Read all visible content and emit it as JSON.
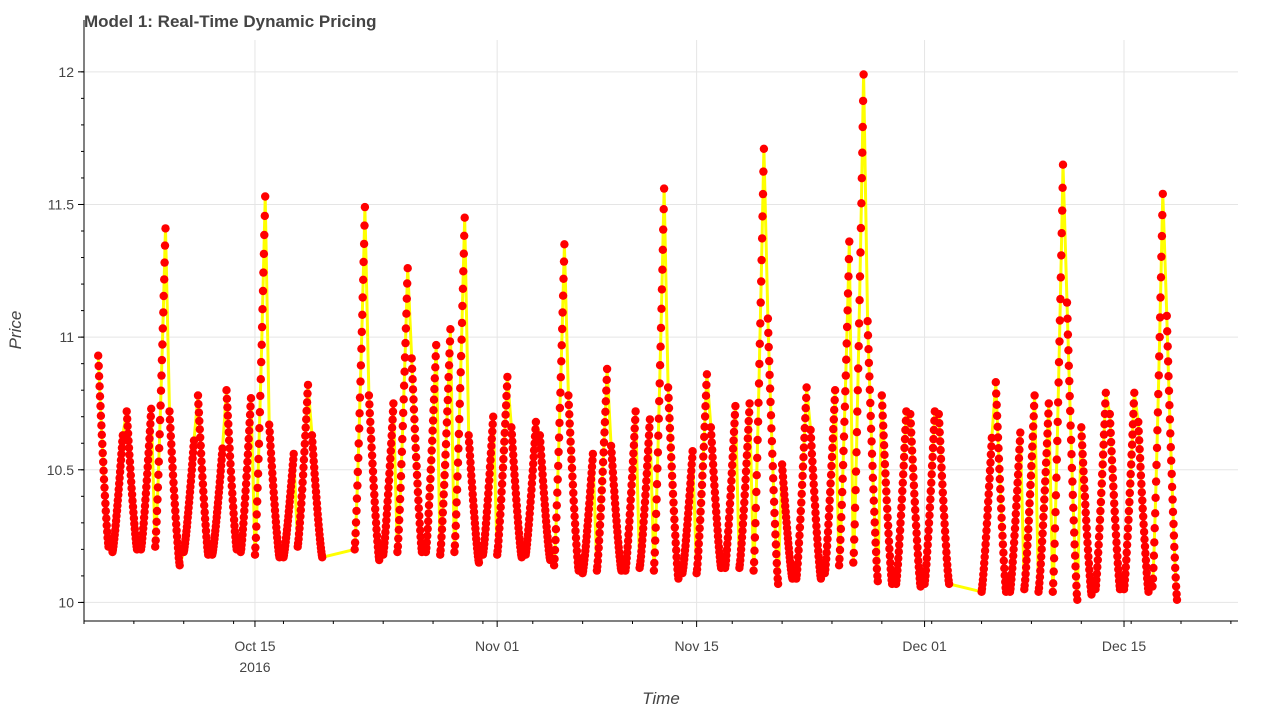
{
  "chart_data": {
    "type": "line",
    "title": "Model 1: Real-Time Dynamic Pricing",
    "xlabel": "Time",
    "ylabel": "Price",
    "x_unit": "date",
    "x_range": [
      "2016-10-03",
      "2016-12-23"
    ],
    "ylim": [
      9.93,
      12.12
    ],
    "y_ticks": [
      10,
      10.5,
      11,
      11.5,
      12
    ],
    "y_tick_labels": [
      "10",
      "10.5",
      "11",
      "11.5",
      "12"
    ],
    "x_ticks": [
      {
        "date": "2016-10-15",
        "label": "Oct 15",
        "sublabel": "2016"
      },
      {
        "date": "2016-11-01",
        "label": "Nov 01",
        "sublabel": ""
      },
      {
        "date": "2016-11-15",
        "label": "Nov 15",
        "sublabel": ""
      },
      {
        "date": "2016-12-01",
        "label": "Dec 01",
        "sublabel": ""
      },
      {
        "date": "2016-12-15",
        "label": "Dec 15",
        "sublabel": ""
      }
    ],
    "grid": true,
    "series": [
      {
        "line_color": "#ffff00",
        "marker_color": "#ff0000",
        "days": [
          {
            "date": "2016-10-04",
            "low": 10.21,
            "high": 10.93,
            "shape": "down"
          },
          {
            "date": "2016-10-05",
            "low": 10.19,
            "high": 10.63,
            "shape": "up"
          },
          {
            "date": "2016-10-06",
            "low": 10.2,
            "high": 10.72,
            "shape": "down"
          },
          {
            "date": "2016-10-07",
            "low": 10.2,
            "high": 10.73,
            "shape": "up"
          },
          {
            "date": "2016-10-08",
            "low": 10.21,
            "high": 11.41,
            "shape": "up"
          },
          {
            "date": "2016-10-09",
            "low": 10.14,
            "high": 10.72,
            "shape": "down"
          },
          {
            "date": "2016-10-10",
            "low": 10.19,
            "high": 10.61,
            "shape": "up"
          },
          {
            "date": "2016-10-11",
            "low": 10.18,
            "high": 10.78,
            "shape": "down"
          },
          {
            "date": "2016-10-12",
            "low": 10.18,
            "high": 10.58,
            "shape": "up"
          },
          {
            "date": "2016-10-13",
            "low": 10.2,
            "high": 10.8,
            "shape": "down"
          },
          {
            "date": "2016-10-14",
            "low": 10.19,
            "high": 10.77,
            "shape": "up"
          },
          {
            "date": "2016-10-15",
            "low": 10.18,
            "high": 11.53,
            "shape": "up"
          },
          {
            "date": "2016-10-16",
            "low": 10.17,
            "high": 10.67,
            "shape": "down"
          },
          {
            "date": "2016-10-17",
            "low": 10.17,
            "high": 10.56,
            "shape": "up"
          },
          {
            "date": "2016-10-18",
            "low": 10.21,
            "high": 10.82,
            "shape": "up"
          },
          {
            "date": "2016-10-19",
            "low": 10.17,
            "high": 10.63,
            "shape": "down"
          },
          {
            "date": "2016-10-22",
            "low": 10.2,
            "high": 11.49,
            "shape": "up"
          },
          {
            "date": "2016-10-23",
            "low": 10.16,
            "high": 10.78,
            "shape": "down"
          },
          {
            "date": "2016-10-24",
            "low": 10.18,
            "high": 10.75,
            "shape": "up"
          },
          {
            "date": "2016-10-25",
            "low": 10.19,
            "high": 11.26,
            "shape": "up"
          },
          {
            "date": "2016-10-26",
            "low": 10.19,
            "high": 10.92,
            "shape": "down"
          },
          {
            "date": "2016-10-27",
            "low": 10.19,
            "high": 10.97,
            "shape": "up"
          },
          {
            "date": "2016-10-28",
            "low": 10.18,
            "high": 11.03,
            "shape": "up"
          },
          {
            "date": "2016-10-29",
            "low": 10.19,
            "high": 11.45,
            "shape": "up"
          },
          {
            "date": "2016-10-30",
            "low": 10.15,
            "high": 10.63,
            "shape": "down"
          },
          {
            "date": "2016-10-31",
            "low": 10.18,
            "high": 10.7,
            "shape": "up"
          },
          {
            "date": "2016-11-01",
            "low": 10.18,
            "high": 10.85,
            "shape": "up"
          },
          {
            "date": "2016-11-02",
            "low": 10.17,
            "high": 10.66,
            "shape": "down"
          },
          {
            "date": "2016-11-03",
            "low": 10.18,
            "high": 10.68,
            "shape": "up"
          },
          {
            "date": "2016-11-04",
            "low": 10.16,
            "high": 10.63,
            "shape": "down"
          },
          {
            "date": "2016-11-05",
            "low": 10.14,
            "high": 11.35,
            "shape": "up"
          },
          {
            "date": "2016-11-06",
            "low": 10.12,
            "high": 10.78,
            "shape": "down"
          },
          {
            "date": "2016-11-07",
            "low": 10.11,
            "high": 10.56,
            "shape": "up"
          },
          {
            "date": "2016-11-08",
            "low": 10.12,
            "high": 10.88,
            "shape": "up"
          },
          {
            "date": "2016-11-09",
            "low": 10.12,
            "high": 10.59,
            "shape": "down"
          },
          {
            "date": "2016-11-10",
            "low": 10.12,
            "high": 10.72,
            "shape": "up"
          },
          {
            "date": "2016-11-11",
            "low": 10.13,
            "high": 10.69,
            "shape": "up"
          },
          {
            "date": "2016-11-12",
            "low": 10.12,
            "high": 11.56,
            "shape": "up"
          },
          {
            "date": "2016-11-13",
            "low": 10.09,
            "high": 10.81,
            "shape": "down"
          },
          {
            "date": "2016-11-14",
            "low": 10.11,
            "high": 10.57,
            "shape": "up"
          },
          {
            "date": "2016-11-15",
            "low": 10.11,
            "high": 10.86,
            "shape": "up"
          },
          {
            "date": "2016-11-16",
            "low": 10.13,
            "high": 10.66,
            "shape": "down"
          },
          {
            "date": "2016-11-17",
            "low": 10.13,
            "high": 10.74,
            "shape": "up"
          },
          {
            "date": "2016-11-18",
            "low": 10.13,
            "high": 10.75,
            "shape": "up"
          },
          {
            "date": "2016-11-19",
            "low": 10.12,
            "high": 11.71,
            "shape": "up"
          },
          {
            "date": "2016-11-20",
            "low": 10.07,
            "high": 11.07,
            "shape": "down"
          },
          {
            "date": "2016-11-21",
            "low": 10.09,
            "high": 10.52,
            "shape": "down"
          },
          {
            "date": "2016-11-22",
            "low": 10.09,
            "high": 10.81,
            "shape": "up"
          },
          {
            "date": "2016-11-23",
            "low": 10.09,
            "high": 10.65,
            "shape": "down"
          },
          {
            "date": "2016-11-24",
            "low": 10.11,
            "high": 10.8,
            "shape": "up"
          },
          {
            "date": "2016-11-25",
            "low": 10.14,
            "high": 11.36,
            "shape": "up"
          },
          {
            "date": "2016-11-26",
            "low": 10.15,
            "high": 11.99,
            "shape": "up"
          },
          {
            "date": "2016-11-27",
            "low": 10.08,
            "high": 11.06,
            "shape": "down"
          },
          {
            "date": "2016-11-28",
            "low": 10.07,
            "high": 10.78,
            "shape": "down"
          },
          {
            "date": "2016-11-29",
            "low": 10.07,
            "high": 10.72,
            "shape": "up"
          },
          {
            "date": "2016-11-30",
            "low": 10.06,
            "high": 10.71,
            "shape": "down"
          },
          {
            "date": "2016-12-01",
            "low": 10.07,
            "high": 10.72,
            "shape": "up"
          },
          {
            "date": "2016-12-02",
            "low": 10.07,
            "high": 10.71,
            "shape": "down"
          },
          {
            "date": "2016-12-05",
            "low": 10.04,
            "high": 10.62,
            "shape": "up"
          },
          {
            "date": "2016-12-06",
            "low": 10.04,
            "high": 10.83,
            "shape": "down"
          },
          {
            "date": "2016-12-07",
            "low": 10.04,
            "high": 10.64,
            "shape": "up"
          },
          {
            "date": "2016-12-08",
            "low": 10.05,
            "high": 10.78,
            "shape": "up"
          },
          {
            "date": "2016-12-09",
            "low": 10.04,
            "high": 10.75,
            "shape": "up"
          },
          {
            "date": "2016-12-10",
            "low": 10.04,
            "high": 11.65,
            "shape": "up"
          },
          {
            "date": "2016-12-11",
            "low": 10.01,
            "high": 11.13,
            "shape": "down"
          },
          {
            "date": "2016-12-12",
            "low": 10.03,
            "high": 10.66,
            "shape": "down"
          },
          {
            "date": "2016-12-13",
            "low": 10.05,
            "high": 10.79,
            "shape": "up"
          },
          {
            "date": "2016-12-14",
            "low": 10.05,
            "high": 10.71,
            "shape": "down"
          },
          {
            "date": "2016-12-15",
            "low": 10.05,
            "high": 10.79,
            "shape": "up"
          },
          {
            "date": "2016-12-16",
            "low": 10.04,
            "high": 10.68,
            "shape": "down"
          },
          {
            "date": "2016-12-17",
            "low": 10.06,
            "high": 11.54,
            "shape": "up"
          },
          {
            "date": "2016-12-18",
            "low": 10.01,
            "high": 11.08,
            "shape": "down"
          }
        ]
      }
    ]
  }
}
